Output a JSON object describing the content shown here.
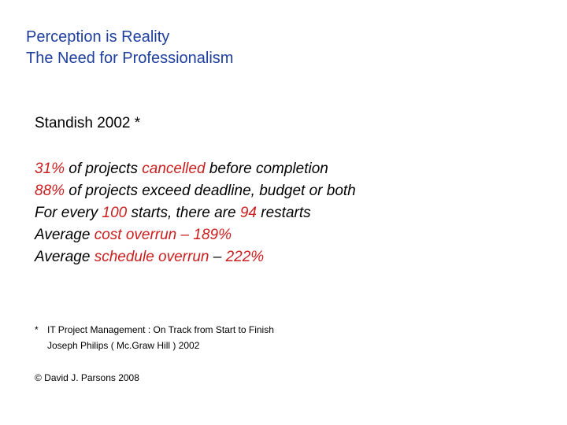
{
  "title": {
    "line1": "Perception is Reality",
    "line2": "The Need for Professionalism"
  },
  "subheading": "Standish 2002 *",
  "stats": [
    {
      "a": "31%",
      "b": " of projects ",
      "c": "cancelled",
      "d": " before completion"
    },
    {
      "a": "88%",
      "b": " of projects exceed deadline, budget or both"
    },
    {
      "a": "For every ",
      "b": "100",
      "c": " starts, there are ",
      "d": "94",
      "e": " restarts"
    },
    {
      "a": "Average ",
      "b": "cost overrun – 189%"
    },
    {
      "a": "Average ",
      "b": "schedule overrun",
      "c": " – ",
      "d": "222%"
    }
  ],
  "footnote": {
    "marker": "*",
    "line1": "IT Project Management : On Track from Start to Finish",
    "line2": "Joseph Philips ( Mc.Graw Hill ) 2002"
  },
  "copyright": "© David J. Parsons 2008",
  "colors": {
    "title": "#1f3f9f",
    "highlight": "#cc1e1e",
    "text": "#000000",
    "background": "#ffffff"
  }
}
